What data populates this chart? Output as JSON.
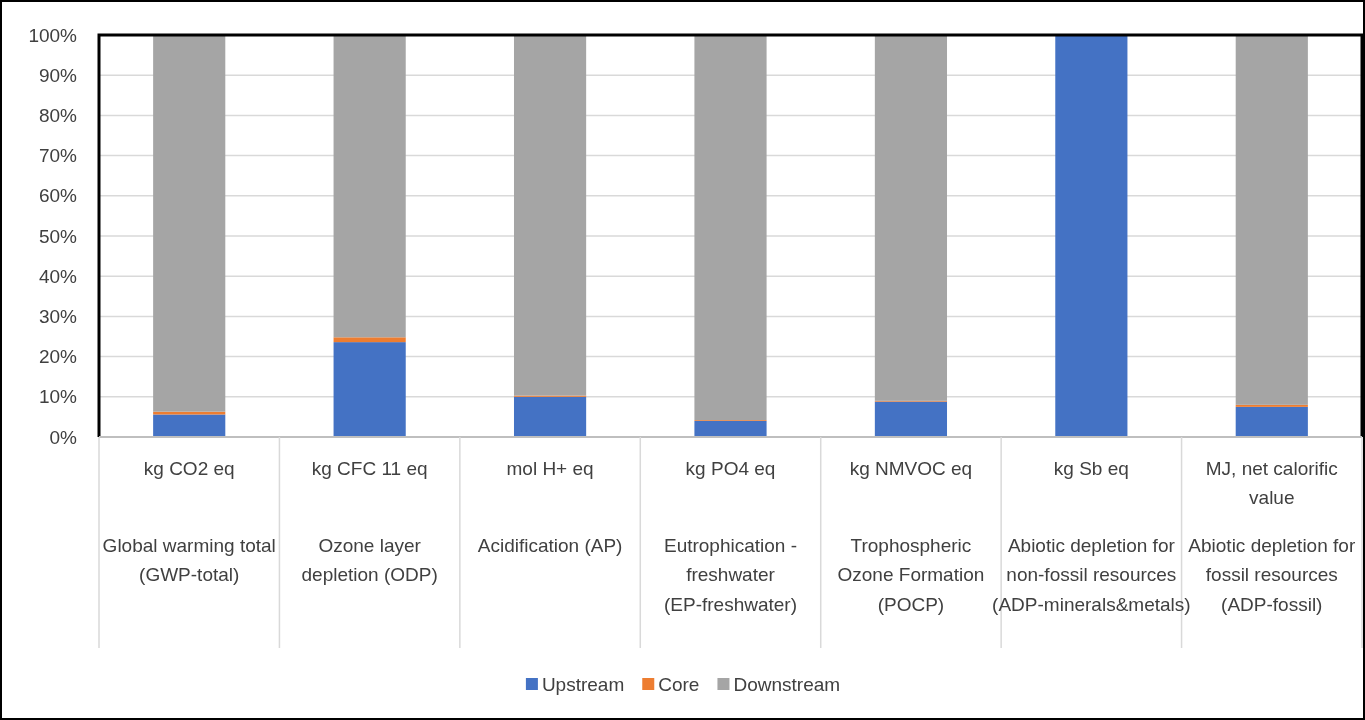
{
  "chart_data": {
    "type": "bar",
    "stacked": true,
    "categories": [
      "kg CO2 eq\nGlobal warming total (GWP-total)",
      "kg CFC 11 eq\nOzone layer depletion (ODP)",
      "mol H+ eq\nAcidification (AP)",
      "kg PO4 eq\nEutrophication - freshwater (EP-freshwater)",
      "kg NMVOC eq\nTrophospheric Ozone Formation (POCP)",
      "kg Sb eq\nAbiotic depletion for non-fossil resources (ADP-minerals&metals)",
      "MJ, net calorific value\nAbiotic depletion for fossil resources (ADP-fossil)"
    ],
    "series": [
      {
        "name": "Upstream",
        "color": "#4472c4",
        "values": [
          5.6,
          23.6,
          10.0,
          4.0,
          8.8,
          100,
          7.5
        ]
      },
      {
        "name": "Core",
        "color": "#ed7d31",
        "values": [
          0.7,
          1.2,
          0.3,
          0.2,
          0.2,
          0,
          0.5
        ]
      },
      {
        "name": "Downstream",
        "color": "#a5a5a5",
        "values": [
          93.7,
          75.2,
          89.7,
          95.8,
          91.0,
          0,
          92.0
        ]
      }
    ],
    "ylim": [
      0,
      100
    ],
    "yticks": [
      {
        "value": 0,
        "label": "0%"
      },
      {
        "value": 10,
        "label": "10%"
      },
      {
        "value": 20,
        "label": "20%"
      },
      {
        "value": 30,
        "label": "30%"
      },
      {
        "value": 40,
        "label": "40%"
      },
      {
        "value": 50,
        "label": "50%"
      },
      {
        "value": 60,
        "label": "60%"
      },
      {
        "value": 70,
        "label": "70%"
      },
      {
        "value": 80,
        "label": "80%"
      },
      {
        "value": 90,
        "label": "90%"
      },
      {
        "value": 100,
        "label": "100%"
      }
    ],
    "grid": "y",
    "legend": "bottom"
  }
}
